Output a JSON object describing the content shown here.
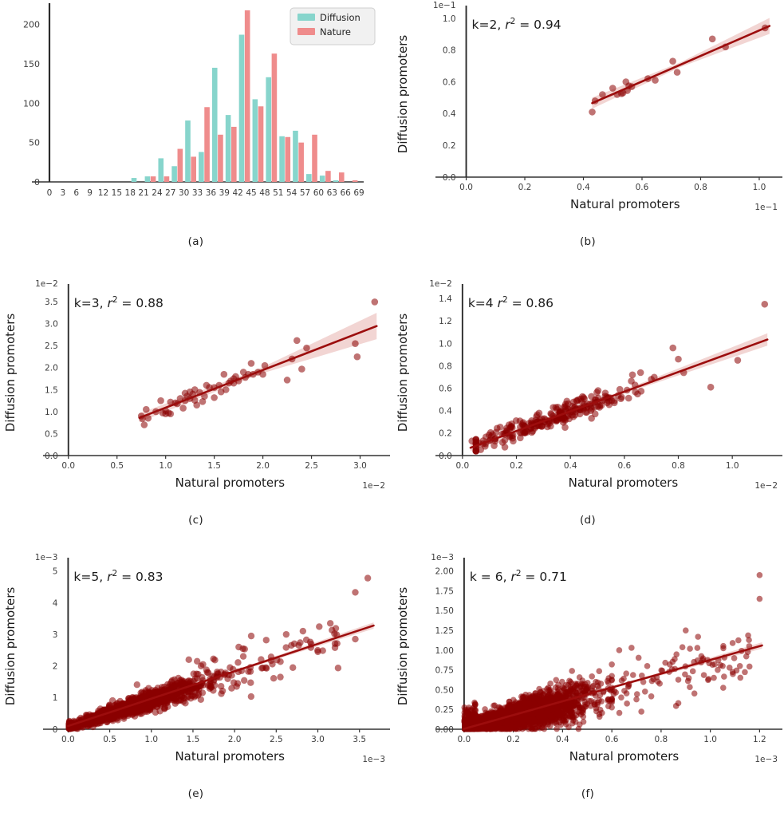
{
  "figure": {
    "background": "#ffffff",
    "colors": {
      "diffusion": "#87d5cc",
      "nature": "#ef8c8c",
      "scatter_point": "#8b0000",
      "point_opacity": 0.55,
      "fit_line": "#9c0d0d",
      "ci_band": "#d98880",
      "band_opacity": 0.35,
      "axis": "#333333",
      "spine": "#2b2b2b",
      "tick_text": "#3d3d3d",
      "text": "#1b1b1b",
      "legend_bg": "#f1f1f1",
      "legend_border": "#cfcfcf"
    }
  },
  "chart_data": [
    {
      "id": "a",
      "type": "bar",
      "caption": "(a)",
      "legend": [
        "Diffusion",
        "Nature"
      ],
      "x_tick_labels": [
        "0",
        "3",
        "6",
        "9",
        "12",
        "15",
        "18",
        "21",
        "24",
        "27",
        "30",
        "33",
        "36",
        "39",
        "42",
        "45",
        "48",
        "51",
        "54",
        "57",
        "60",
        "63",
        "66",
        "69"
      ],
      "x_tick_values": [
        0,
        3,
        6,
        9,
        12,
        15,
        18,
        21,
        24,
        27,
        30,
        33,
        36,
        39,
        42,
        45,
        48,
        51,
        54,
        57,
        60,
        63,
        66,
        69
      ],
      "y_tick_labels": [
        "0",
        "50",
        "100",
        "150",
        "200"
      ],
      "y_tick_values": [
        0,
        50,
        100,
        150,
        200
      ],
      "xlim": [
        0,
        69
      ],
      "ylim": [
        0,
        225
      ],
      "bin_starts": [
        18,
        21,
        24,
        27,
        30,
        33,
        36,
        39,
        42,
        45,
        48,
        51,
        54,
        57,
        60,
        63,
        66
      ],
      "series": [
        {
          "name": "Diffusion",
          "color_key": "diffusion",
          "values": [
            5,
            7,
            30,
            20,
            78,
            38,
            145,
            85,
            187,
            105,
            133,
            58,
            65,
            10,
            8,
            2,
            0
          ]
        },
        {
          "name": "Nature",
          "color_key": "nature",
          "values": [
            0,
            7,
            7,
            42,
            32,
            95,
            60,
            70,
            218,
            96,
            163,
            57,
            50,
            60,
            14,
            12,
            2
          ]
        }
      ]
    },
    {
      "id": "b",
      "type": "scatter",
      "caption": "(b)",
      "annotation": {
        "prefix": "k=2, ",
        "value": "0.94"
      },
      "xlabel": "Natural promoters",
      "ylabel": "Diffusion promoters",
      "x_offset": "1e−1",
      "y_offset": "1e−1",
      "xlim": [
        -0.045,
        1.06
      ],
      "ylim": [
        0,
        1.045
      ],
      "x_ticks": {
        "values": [
          0,
          0.2,
          0.4,
          0.6,
          0.8,
          1.0
        ],
        "labels": [
          "0.0",
          "0.2",
          "0.4",
          "0.6",
          "0.8",
          "1.0"
        ]
      },
      "y_ticks": {
        "values": [
          0,
          0.2,
          0.4,
          0.6,
          0.8,
          1.0
        ],
        "labels": [
          "0.0",
          "0.2",
          "0.4",
          "0.6",
          "0.8",
          "1.0"
        ]
      },
      "point_r": 4.3,
      "points": [
        [
          0.43,
          0.41
        ],
        [
          0.44,
          0.48
        ],
        [
          0.465,
          0.52
        ],
        [
          0.5,
          0.56
        ],
        [
          0.515,
          0.52
        ],
        [
          0.53,
          0.525
        ],
        [
          0.535,
          0.53
        ],
        [
          0.545,
          0.6
        ],
        [
          0.55,
          0.545
        ],
        [
          0.555,
          0.575
        ],
        [
          0.565,
          0.57
        ],
        [
          0.62,
          0.62
        ],
        [
          0.645,
          0.61
        ],
        [
          0.705,
          0.73
        ],
        [
          0.72,
          0.66
        ],
        [
          0.84,
          0.87
        ],
        [
          0.885,
          0.82
        ],
        [
          1.02,
          0.94
        ]
      ],
      "line": [
        [
          0.43,
          0.466
        ],
        [
          1.035,
          0.952
        ]
      ],
      "band_halfwidths": [
        0.035,
        0.015,
        0.05
      ]
    },
    {
      "id": "c",
      "type": "scatter",
      "caption": "(c)",
      "annotation": {
        "prefix": "k=3, ",
        "value": "0.88"
      },
      "xlabel": "Natural promoters",
      "ylabel": "Diffusion promoters",
      "x_offset": "1e−2",
      "y_offset": "1e−2",
      "xlim": [
        -0.08,
        3.25
      ],
      "ylim": [
        0,
        3.78
      ],
      "x_ticks": {
        "values": [
          0,
          0.5,
          1.0,
          1.5,
          2.0,
          2.5,
          3.0
        ],
        "labels": [
          "0.0",
          "0.5",
          "1.0",
          "1.5",
          "2.0",
          "2.5",
          "3.0"
        ]
      },
      "y_ticks": {
        "values": [
          0,
          0.5,
          1.0,
          1.5,
          2.0,
          2.5,
          3.0,
          3.5
        ],
        "labels": [
          "0.0",
          "0.5",
          "1.0",
          "1.5",
          "2.0",
          "2.5",
          "3.0",
          "3.5"
        ]
      },
      "point_r": 4.3,
      "points": [
        [
          0.75,
          0.9
        ],
        [
          0.76,
          0.84
        ],
        [
          0.78,
          0.7
        ],
        [
          0.8,
          1.05
        ],
        [
          0.82,
          0.85
        ],
        [
          0.9,
          1.0
        ],
        [
          0.95,
          1.25
        ],
        [
          0.97,
          0.97
        ],
        [
          1.0,
          0.95
        ],
        [
          1.0,
          1.02
        ],
        [
          1.03,
          0.97
        ],
        [
          1.05,
          0.95
        ],
        [
          1.05,
          1.22
        ],
        [
          1.1,
          1.2
        ],
        [
          1.12,
          1.18
        ],
        [
          1.15,
          1.3
        ],
        [
          1.18,
          1.08
        ],
        [
          1.2,
          1.25
        ],
        [
          1.2,
          1.42
        ],
        [
          1.22,
          1.35
        ],
        [
          1.25,
          1.45
        ],
        [
          1.25,
          1.3
        ],
        [
          1.28,
          1.4
        ],
        [
          1.3,
          1.5
        ],
        [
          1.3,
          1.26
        ],
        [
          1.32,
          1.15
        ],
        [
          1.35,
          1.44
        ],
        [
          1.38,
          1.23
        ],
        [
          1.4,
          1.35
        ],
        [
          1.42,
          1.6
        ],
        [
          1.45,
          1.55
        ],
        [
          1.5,
          1.55
        ],
        [
          1.5,
          1.32
        ],
        [
          1.55,
          1.6
        ],
        [
          1.57,
          1.45
        ],
        [
          1.6,
          1.85
        ],
        [
          1.62,
          1.5
        ],
        [
          1.65,
          1.65
        ],
        [
          1.67,
          1.7
        ],
        [
          1.7,
          1.75
        ],
        [
          1.7,
          1.65
        ],
        [
          1.72,
          1.8
        ],
        [
          1.75,
          1.7
        ],
        [
          1.8,
          1.9
        ],
        [
          1.82,
          1.78
        ],
        [
          1.85,
          1.85
        ],
        [
          1.88,
          2.1
        ],
        [
          1.9,
          1.85
        ],
        [
          1.95,
          1.9
        ],
        [
          2.0,
          1.85
        ],
        [
          2.02,
          2.05
        ],
        [
          2.25,
          1.72
        ],
        [
          2.3,
          2.2
        ],
        [
          2.35,
          2.62
        ],
        [
          2.4,
          1.97
        ],
        [
          2.45,
          2.45
        ],
        [
          2.95,
          2.55
        ],
        [
          2.97,
          2.25
        ],
        [
          3.15,
          3.5
        ]
      ],
      "line": [
        [
          0.73,
          0.86
        ],
        [
          3.17,
          2.95
        ]
      ],
      "band_halfwidths": [
        0.1,
        0.06,
        0.3
      ]
    },
    {
      "id": "d",
      "type": "scatter",
      "caption": "(d)",
      "annotation": {
        "prefix": "k=4 ",
        "value": "0.86"
      },
      "xlabel": "Natural promoters",
      "ylabel": "Diffusion promoters",
      "x_offset": "1e−2",
      "y_offset": "1e−2",
      "xlim": [
        -0.035,
        1.165
      ],
      "ylim": [
        0,
        1.48
      ],
      "x_ticks": {
        "values": [
          0,
          0.2,
          0.4,
          0.6,
          0.8,
          1.0
        ],
        "labels": [
          "0.0",
          "0.2",
          "0.4",
          "0.6",
          "0.8",
          "1.0"
        ]
      },
      "y_ticks": {
        "values": [
          0,
          0.2,
          0.4,
          0.6,
          0.8,
          1.0,
          1.2,
          1.4
        ],
        "labels": [
          "0.0",
          "0.2",
          "0.4",
          "0.6",
          "0.8",
          "1.0",
          "1.2",
          "1.4"
        ]
      },
      "point_r": 4.3,
      "clouds": [
        {
          "n": 250,
          "seed": 5,
          "shape": "normal",
          "x_center": 0.32,
          "x_sd": 0.165,
          "x_clip": [
            0.05,
            0.82
          ],
          "intercept": 0.045,
          "slope": 0.865,
          "noise_base": 0.045,
          "noise_prop": 0,
          "y_min": 0.04
        }
      ],
      "points": [
        [
          1.12,
          1.35
        ],
        [
          1.02,
          0.85
        ],
        [
          0.92,
          0.61
        ],
        [
          0.78,
          0.96
        ],
        [
          0.8,
          0.86
        ],
        [
          0.035,
          0.13
        ],
        [
          0.63,
          0.72
        ],
        [
          0.66,
          0.74
        ],
        [
          0.7,
          0.68
        ]
      ],
      "line": [
        [
          0.03,
          0.07
        ],
        [
          1.13,
          1.035
        ]
      ],
      "band_halfwidths": [
        0.03,
        0.015,
        0.055
      ]
    },
    {
      "id": "e",
      "type": "scatter",
      "caption": "(e)",
      "annotation": {
        "prefix": "k=5, ",
        "value": "0.83"
      },
      "xlabel": "Natural promoters",
      "ylabel": "Diffusion promoters",
      "x_offset": "1e−3",
      "y_offset": "1e−3",
      "xlim": [
        -0.09,
        3.8
      ],
      "ylim": [
        0,
        5.25
      ],
      "x_ticks": {
        "values": [
          0,
          0.5,
          1.0,
          1.5,
          2.0,
          2.5,
          3.0,
          3.5
        ],
        "labels": [
          "0.0",
          "0.5",
          "1.0",
          "1.5",
          "2.0",
          "2.5",
          "3.0",
          "3.5"
        ]
      },
      "y_ticks": {
        "values": [
          0,
          1,
          2,
          3,
          4,
          5
        ],
        "labels": [
          "0",
          "1",
          "2",
          "3",
          "4",
          "5"
        ]
      },
      "point_r": 4.2,
      "clouds": [
        {
          "n": 1250,
          "seed": 11,
          "shape": "normal",
          "x_center": 0.72,
          "x_sd": 0.5,
          "x_clip": [
            0.015,
            2.55
          ],
          "intercept": 0.07,
          "slope": 0.85,
          "noise_base": 0.06,
          "noise_prop": 0.1,
          "y_min": 0.02
        },
        {
          "n": 45,
          "seed": 12,
          "shape": "uniform",
          "x_range": [
            1.5,
            3.25
          ],
          "intercept": 0,
          "slope": 0.88,
          "noise_base": 0.3,
          "noise_prop": 0,
          "y_min": 0.3
        }
      ],
      "points": [
        [
          3.6,
          4.78
        ],
        [
          3.45,
          4.33
        ],
        [
          3.15,
          3.35
        ],
        [
          3.2,
          3.02
        ],
        [
          3.45,
          2.85
        ],
        [
          2.2,
          2.95
        ],
        [
          2.38,
          2.82
        ],
        [
          2.05,
          2.6
        ],
        [
          2.62,
          3.0
        ],
        [
          3.0,
          2.45
        ],
        [
          2.7,
          1.95
        ],
        [
          2.55,
          1.65
        ],
        [
          1.45,
          2.2
        ],
        [
          1.55,
          2.15
        ],
        [
          1.62,
          2.05
        ]
      ],
      "line": [
        [
          0.0,
          0.1
        ],
        [
          3.67,
          3.28
        ]
      ],
      "band_halfwidths": [
        0.05,
        0.03,
        0.1
      ]
    },
    {
      "id": "f",
      "type": "scatter",
      "caption": "(f)",
      "annotation": {
        "prefix": "k = 6, ",
        "value": "0.71"
      },
      "xlabel": "Natural promoters",
      "ylabel": "Diffusion promoters",
      "x_offset": "1e−3",
      "y_offset": "1e−3",
      "xlim": [
        -0.045,
        1.27
      ],
      "ylim": [
        0,
        2.1
      ],
      "x_ticks": {
        "values": [
          0,
          0.2,
          0.4,
          0.6,
          0.8,
          1.0,
          1.2
        ],
        "labels": [
          "0.0",
          "0.2",
          "0.4",
          "0.6",
          "0.8",
          "1.0",
          "1.2"
        ]
      },
      "y_ticks": {
        "values": [
          0,
          0.25,
          0.5,
          0.75,
          1.0,
          1.25,
          1.5,
          1.75,
          2.0
        ],
        "labels": [
          "0.00",
          "0.25",
          "0.50",
          "0.75",
          "1.00",
          "1.25",
          "1.50",
          "1.75",
          "2.00"
        ]
      },
      "point_r": 3.8,
      "clouds": [
        {
          "n": 2700,
          "seed": 21,
          "shape": "normal",
          "x_center": 0.21,
          "x_sd": 0.145,
          "x_clip": [
            0.003,
            0.6
          ],
          "intercept": 0.012,
          "slope": 0.78,
          "noise_base": 0.03,
          "noise_prop": 0.22,
          "y_min": 0.004
        },
        {
          "n": 95,
          "seed": 22,
          "shape": "uniform",
          "x_range": [
            0.58,
            1.16
          ],
          "intercept": 0,
          "slope": 0.8,
          "noise_base": 0.16,
          "noise_prop": 0,
          "y_min": 0.12
        },
        {
          "n": 120,
          "seed": 23,
          "shape": "uniform",
          "x_range": [
            0.0,
            0.05
          ],
          "intercept": 0.12,
          "slope": 0,
          "noise_base": 0.1,
          "noise_prop": 0,
          "y_min": 0.004
        }
      ],
      "points": [
        [
          1.2,
          1.95
        ],
        [
          1.2,
          1.65
        ],
        [
          0.9,
          1.25
        ],
        [
          0.95,
          1.17
        ],
        [
          1.05,
          0.8
        ],
        [
          1.12,
          0.8
        ],
        [
          0.87,
          0.33
        ],
        [
          1.03,
          0.75
        ],
        [
          0.63,
          1.0
        ],
        [
          0.68,
          1.03
        ]
      ],
      "line": [
        [
          0.0,
          0.005
        ],
        [
          1.21,
          1.06
        ]
      ],
      "band_halfwidths": [
        0.02,
        0.012,
        0.04
      ]
    }
  ]
}
